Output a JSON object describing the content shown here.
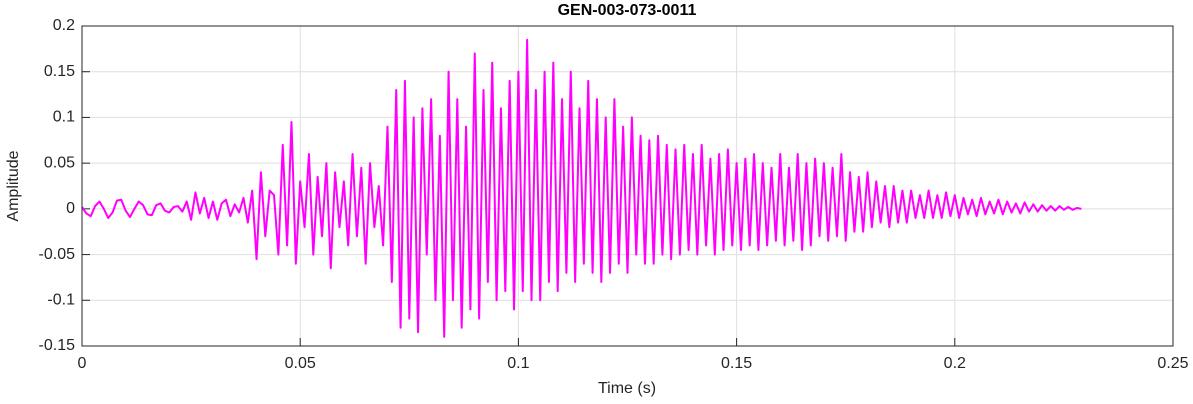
{
  "chart_data": {
    "type": "line",
    "title": "GEN-003-073-0011",
    "x_label": "Time (s)",
    "y_label": "Amplitude",
    "color": "#ff00ff",
    "grid": true,
    "xlim": [
      0,
      0.25
    ],
    "xticks": [
      0,
      0.05,
      0.1,
      0.15,
      0.2,
      0.25
    ],
    "ylim": [
      -0.15,
      0.2
    ],
    "yticks": [
      -0.15,
      -0.1,
      -0.05,
      0,
      0.05,
      0.1,
      0.15,
      0.2
    ],
    "x": [
      0,
      0.001,
      0.002,
      0.003,
      0.004,
      0.005,
      0.006,
      0.007,
      0.008,
      0.009,
      0.01,
      0.011,
      0.012,
      0.013,
      0.014,
      0.015,
      0.016,
      0.017,
      0.018,
      0.019,
      0.02,
      0.021,
      0.022,
      0.023,
      0.024,
      0.025,
      0.026,
      0.027,
      0.028,
      0.029,
      0.03,
      0.031,
      0.032,
      0.033,
      0.034,
      0.035,
      0.036,
      0.037,
      0.038,
      0.039,
      0.04,
      0.041,
      0.042,
      0.043,
      0.044,
      0.045,
      0.046,
      0.047,
      0.048,
      0.049,
      0.05,
      0.051,
      0.052,
      0.053,
      0.054,
      0.055,
      0.056,
      0.057,
      0.058,
      0.059,
      0.06,
      0.061,
      0.062,
      0.063,
      0.064,
      0.065,
      0.066,
      0.067,
      0.068,
      0.069,
      0.07,
      0.071,
      0.072,
      0.073,
      0.074,
      0.075,
      0.076,
      0.077,
      0.078,
      0.079,
      0.08,
      0.081,
      0.082,
      0.083,
      0.084,
      0.085,
      0.086,
      0.087,
      0.088,
      0.089,
      0.09,
      0.091,
      0.092,
      0.093,
      0.094,
      0.095,
      0.096,
      0.097,
      0.098,
      0.099,
      0.1,
      0.101,
      0.102,
      0.103,
      0.104,
      0.105,
      0.106,
      0.107,
      0.108,
      0.109,
      0.11,
      0.111,
      0.112,
      0.113,
      0.114,
      0.115,
      0.116,
      0.117,
      0.118,
      0.119,
      0.12,
      0.121,
      0.122,
      0.123,
      0.124,
      0.125,
      0.126,
      0.127,
      0.128,
      0.129,
      0.13,
      0.131,
      0.132,
      0.133,
      0.134,
      0.135,
      0.136,
      0.137,
      0.138,
      0.139,
      0.14,
      0.141,
      0.142,
      0.143,
      0.144,
      0.145,
      0.146,
      0.147,
      0.148,
      0.149,
      0.15,
      0.151,
      0.152,
      0.153,
      0.154,
      0.155,
      0.156,
      0.157,
      0.158,
      0.159,
      0.16,
      0.161,
      0.162,
      0.163,
      0.164,
      0.165,
      0.166,
      0.167,
      0.168,
      0.169,
      0.17,
      0.171,
      0.172,
      0.173,
      0.174,
      0.175,
      0.176,
      0.177,
      0.178,
      0.179,
      0.18,
      0.181,
      0.182,
      0.183,
      0.184,
      0.185,
      0.186,
      0.187,
      0.188,
      0.189,
      0.19,
      0.191,
      0.192,
      0.193,
      0.194,
      0.195,
      0.196,
      0.197,
      0.198,
      0.199,
      0.2,
      0.201,
      0.202,
      0.203,
      0.204,
      0.205,
      0.206,
      0.207,
      0.208,
      0.209,
      0.21,
      0.211,
      0.212,
      0.213,
      0.214,
      0.215,
      0.216,
      0.217,
      0.218,
      0.219,
      0.22,
      0.221,
      0.222,
      0.223,
      0.224,
      0.225,
      0.226,
      0.227,
      0.228,
      0.229
    ],
    "values": [
      0.002,
      -0.005,
      -0.008,
      0.003,
      0.008,
      0.0,
      -0.01,
      -0.004,
      0.009,
      0.01,
      -0.002,
      -0.009,
      0.0,
      0.008,
      0.004,
      -0.006,
      -0.007,
      0.004,
      0.006,
      -0.002,
      -0.004,
      0.002,
      0.003,
      -0.003,
      0.008,
      -0.012,
      0.018,
      -0.005,
      0.012,
      -0.01,
      0.008,
      -0.012,
      0.006,
      0.01,
      -0.008,
      0.005,
      -0.004,
      0.012,
      -0.015,
      0.02,
      -0.055,
      0.04,
      -0.03,
      0.02,
      0.015,
      -0.05,
      0.07,
      -0.04,
      0.095,
      -0.06,
      0.03,
      -0.02,
      0.06,
      -0.05,
      0.035,
      -0.03,
      0.05,
      -0.065,
      0.04,
      -0.02,
      0.03,
      -0.04,
      0.06,
      -0.03,
      0.045,
      -0.06,
      0.05,
      -0.02,
      0.025,
      -0.04,
      0.09,
      -0.08,
      0.13,
      -0.13,
      0.14,
      -0.12,
      0.1,
      -0.135,
      0.11,
      -0.05,
      0.12,
      -0.1,
      0.08,
      -0.14,
      0.15,
      -0.1,
      0.12,
      -0.13,
      0.09,
      -0.11,
      0.17,
      -0.12,
      0.13,
      -0.08,
      0.16,
      -0.1,
      0.11,
      -0.09,
      0.14,
      -0.11,
      0.15,
      -0.09,
      0.185,
      -0.1,
      0.13,
      -0.1,
      0.15,
      -0.08,
      0.16,
      -0.09,
      0.12,
      -0.07,
      0.15,
      -0.08,
      0.11,
      -0.06,
      0.14,
      -0.07,
      0.12,
      -0.08,
      0.1,
      -0.07,
      0.12,
      -0.06,
      0.09,
      -0.07,
      0.1,
      -0.05,
      0.08,
      -0.06,
      0.075,
      -0.06,
      0.08,
      -0.05,
      0.07,
      -0.055,
      0.065,
      -0.05,
      0.07,
      -0.045,
      0.06,
      -0.05,
      0.07,
      -0.04,
      0.055,
      -0.05,
      0.06,
      -0.045,
      0.065,
      -0.04,
      0.05,
      -0.045,
      0.055,
      -0.04,
      0.06,
      -0.045,
      0.05,
      -0.04,
      0.045,
      -0.035,
      0.06,
      -0.04,
      0.045,
      -0.035,
      0.06,
      -0.045,
      0.05,
      -0.04,
      0.055,
      -0.03,
      0.05,
      -0.035,
      0.045,
      -0.03,
      0.06,
      -0.035,
      0.04,
      -0.025,
      0.035,
      -0.025,
      0.04,
      -0.02,
      0.03,
      -0.015,
      0.025,
      -0.02,
      0.025,
      -0.015,
      0.02,
      -0.015,
      0.02,
      -0.01,
      0.015,
      -0.01,
      0.02,
      -0.01,
      0.015,
      -0.01,
      0.018,
      -0.008,
      0.015,
      -0.01,
      0.012,
      -0.006,
      0.01,
      -0.008,
      0.012,
      -0.006,
      0.008,
      -0.005,
      0.01,
      -0.006,
      0.008,
      -0.004,
      0.006,
      -0.005,
      0.007,
      -0.003,
      0.005,
      -0.003,
      0.004,
      -0.002,
      0.003,
      -0.002,
      0.003,
      -0.001,
      0.002,
      -0.001,
      0.001,
      0.0
    ]
  }
}
